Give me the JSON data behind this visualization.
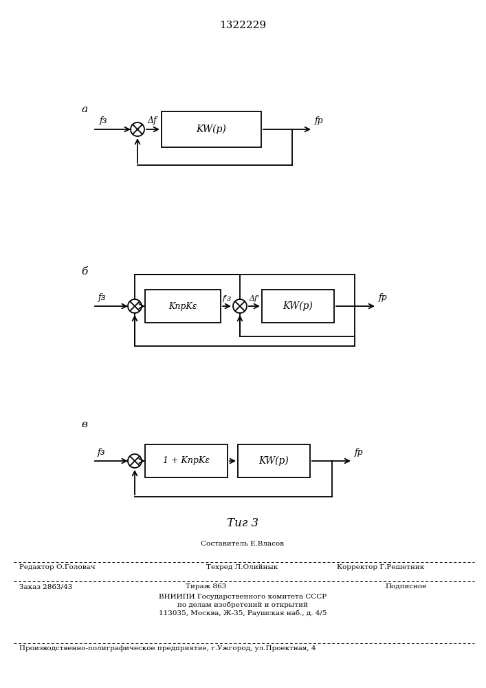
{
  "title": "1322229",
  "fig_caption": "Τиг 3",
  "background_color": "#ffffff",
  "diagrams": {
    "a": {
      "label": "а",
      "fz": "fз",
      "delta_f": "Δf",
      "fp": "fр",
      "box": "KW(p)"
    },
    "b": {
      "label": "б",
      "fz": "fз",
      "fs": "f'з",
      "delta_f": "Δf'",
      "fp": "fр",
      "box1": "KпрKε",
      "box2": "KW(p)"
    },
    "v": {
      "label": "в",
      "fz": "fз",
      "fp": "fр",
      "box1": "1 + KпрKε",
      "box2": "KW(p)"
    }
  },
  "footer": {
    "line1_left": "Редактор О.Головач",
    "line1_center_top": "Составитель Е.Власов",
    "line1_center": "Техред Л.Олийнык",
    "line1_right": "Корректор Г.Решетник",
    "order": "Заказ 2863/43",
    "tirazh": "Тираж 863",
    "podp": "Подписное",
    "vniip1": "ВНИИПИ Государственного комитета СССР",
    "vniip2": "по делам изобретений и открытий",
    "vniip3": "113035, Москва, Ж-35, Раушская наб., д. 4/5",
    "factory": "Производственно-полиграфическое предприятие, г.Ужгород, ул.Проектная, 4"
  }
}
